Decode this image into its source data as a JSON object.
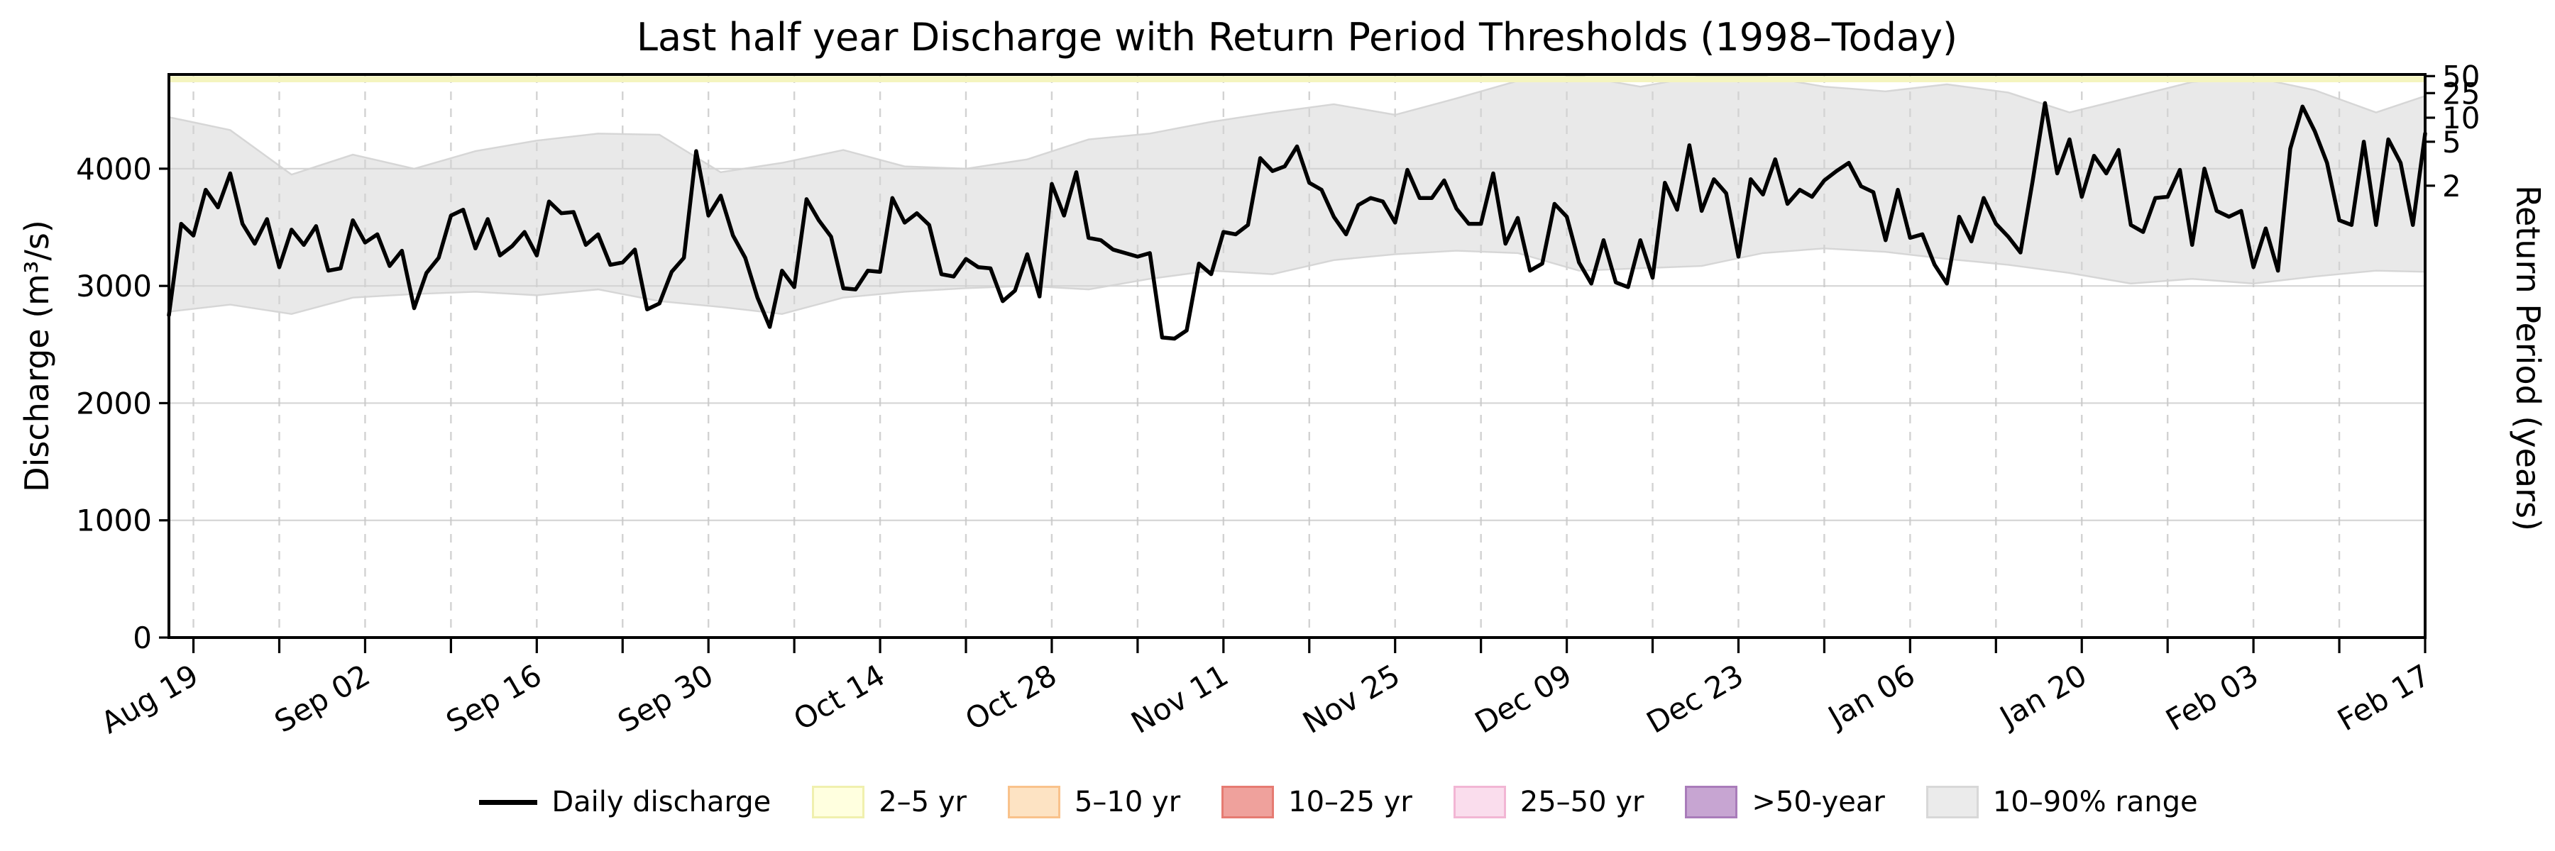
{
  "title": "Last half year Discharge with Return Period Thresholds (1998–Today)",
  "axes": {
    "left_label": "Discharge (m³/s)",
    "right_label": "Return Period (years)",
    "left_ticks": [
      0,
      1000,
      2000,
      3000,
      4000
    ],
    "right_ticks": [
      {
        "label": "50",
        "discharge": 4790
      },
      {
        "label": "25",
        "discharge": 4645
      },
      {
        "label": "10",
        "discharge": 4435
      },
      {
        "label": "5",
        "discharge": 4230
      },
      {
        "label": "2",
        "discharge": 3855
      }
    ],
    "x_tick_labels": [
      "Aug 19",
      "Sep 02",
      "Sep 16",
      "Sep 30",
      "Oct 14",
      "Oct 28",
      "Nov 11",
      "Nov 25",
      "Dec 09",
      "Dec 23",
      "Jan 06",
      "Jan 20",
      "Feb 03",
      "Feb 17"
    ]
  },
  "legend": [
    {
      "name": "daily-discharge",
      "label": "Daily discharge",
      "swatch": "line",
      "color": "#000000"
    },
    {
      "name": "band-2-5yr",
      "label": "2–5 yr",
      "swatch": "patch",
      "fill": "#ffffdf",
      "border": "#f0f0ae"
    },
    {
      "name": "band-5-10yr",
      "label": "5–10 yr",
      "swatch": "patch",
      "fill": "#fde3c3",
      "border": "#f9c28b"
    },
    {
      "name": "band-10-25yr",
      "label": "10–25 yr",
      "swatch": "patch",
      "fill": "#efa19c",
      "border": "#e67b72"
    },
    {
      "name": "band-25-50yr",
      "label": "25–50 yr",
      "swatch": "patch",
      "fill": "#fadded",
      "border": "#f2b6d4"
    },
    {
      "name": "band-gt-50yr",
      "label": ">50-year",
      "swatch": "patch",
      "fill": "#c7a5d2",
      "border": "#a97cba"
    },
    {
      "name": "band-10-90pct",
      "label": "10–90% range",
      "swatch": "patch",
      "fill": "#ebebeb",
      "border": "#d8d8d8"
    }
  ],
  "colors": {
    "line": "#000000",
    "frame": "#000000",
    "grid": "#c8c8c8",
    "band_fill": "#d3d3d3",
    "band_fill_opacity": 0.5,
    "band_edge": "#d3d3d3",
    "top_strip": "#f4f4bf"
  },
  "chart_data": {
    "type": "line",
    "title": "Last half year Discharge with Return Period Thresholds (1998–Today)",
    "xlabel": "",
    "ylabel": "Discharge (m³/s)",
    "y2label": "Return Period (years)",
    "x_start_date": "Aug 17",
    "x_end_date": "Feb 17",
    "days_total": 185,
    "x_first_tick_day": 2,
    "x_tick_interval_days": 7,
    "x_label_interval_days": 14,
    "x_tick_labels": [
      "Aug 19",
      "Sep 02",
      "Sep 16",
      "Sep 30",
      "Oct 14",
      "Oct 28",
      "Nov 11",
      "Nov 25",
      "Dec 09",
      "Dec 23",
      "Jan 06",
      "Jan 20",
      "Feb 03",
      "Feb 17"
    ],
    "ylim": [
      0,
      4804
    ],
    "grid": {
      "horizontal": "solid",
      "vertical": "dashed"
    },
    "legend_position": "bottom-center",
    "return_period_thresholds_m3s": {
      "2": 3855,
      "5": 4230,
      "10": 4435,
      "25": 4645,
      "50": 4790
    },
    "series": [
      {
        "name": "Daily discharge",
        "unit": "m³/s",
        "values": [
          2750,
          3530,
          3430,
          3820,
          3670,
          3960,
          3530,
          3360,
          3570,
          3160,
          3480,
          3350,
          3510,
          3130,
          3150,
          3560,
          3370,
          3440,
          3170,
          3300,
          2810,
          3110,
          3240,
          3600,
          3650,
          3320,
          3570,
          3260,
          3340,
          3460,
          3260,
          3720,
          3620,
          3630,
          3350,
          3440,
          3180,
          3200,
          3310,
          2800,
          2850,
          3120,
          3240,
          4150,
          3600,
          3770,
          3430,
          3240,
          2900,
          2650,
          3130,
          2990,
          3740,
          3560,
          3420,
          2980,
          2970,
          3130,
          3120,
          3750,
          3540,
          3620,
          3520,
          3100,
          3080,
          3230,
          3160,
          3150,
          2870,
          2960,
          3270,
          2910,
          3870,
          3600,
          3970,
          3410,
          3390,
          3310,
          3280,
          3250,
          3280,
          2560,
          2550,
          2620,
          3190,
          3100,
          3460,
          3440,
          3520,
          4090,
          3980,
          4020,
          4190,
          3880,
          3820,
          3590,
          3440,
          3690,
          3750,
          3720,
          3540,
          3990,
          3750,
          3750,
          3900,
          3660,
          3530,
          3530,
          3960,
          3360,
          3580,
          3130,
          3190,
          3700,
          3590,
          3200,
          3020,
          3390,
          3030,
          2990,
          3390,
          3070,
          3880,
          3650,
          4200,
          3640,
          3910,
          3790,
          3250,
          3910,
          3780,
          4080,
          3700,
          3820,
          3760,
          3900,
          3980,
          4050,
          3850,
          3800,
          3390,
          3820,
          3410,
          3440,
          3180,
          3020,
          3590,
          3380,
          3750,
          3530,
          3420,
          3285,
          3900,
          4560,
          3960,
          4250,
          3760,
          4110,
          3960,
          4160,
          3520,
          3460,
          3750,
          3760,
          3990,
          3350,
          4000,
          3640,
          3590,
          3640,
          3160,
          3490,
          3130,
          4170,
          4530,
          4320,
          4050,
          3560,
          3520,
          4230,
          3520,
          4250,
          4050,
          3520,
          4300
        ]
      },
      {
        "name": "10–90% range upper (p90)",
        "unit": "m³/s",
        "x_days": [
          0,
          5,
          10,
          15,
          20,
          25,
          30,
          35,
          40,
          45,
          50,
          55,
          60,
          65,
          70,
          75,
          80,
          85,
          90,
          95,
          100,
          105,
          110,
          115,
          120,
          125,
          130,
          135,
          140,
          145,
          150,
          155,
          160,
          165,
          170,
          175,
          180,
          184
        ],
        "values": [
          4440,
          4330,
          3950,
          4120,
          4000,
          4150,
          4240,
          4300,
          4290,
          3970,
          4050,
          4160,
          4020,
          4000,
          4080,
          4250,
          4300,
          4400,
          4480,
          4550,
          4460,
          4600,
          4750,
          4800,
          4700,
          4800,
          4790,
          4700,
          4660,
          4720,
          4650,
          4480,
          4610,
          4740,
          4780,
          4670,
          4480,
          4620
        ]
      },
      {
        "name": "10–90% range lower (p10)",
        "unit": "m³/s",
        "x_days": [
          0,
          5,
          10,
          15,
          20,
          25,
          30,
          35,
          40,
          45,
          50,
          55,
          60,
          65,
          70,
          75,
          80,
          85,
          90,
          95,
          100,
          105,
          110,
          115,
          120,
          125,
          130,
          135,
          140,
          145,
          150,
          155,
          160,
          165,
          170,
          175,
          180,
          184
        ],
        "values": [
          2780,
          2840,
          2760,
          2900,
          2930,
          2950,
          2920,
          2970,
          2870,
          2820,
          2760,
          2900,
          2950,
          2980,
          3000,
          2970,
          3060,
          3130,
          3100,
          3220,
          3270,
          3300,
          3280,
          3130,
          3150,
          3170,
          3280,
          3320,
          3290,
          3230,
          3180,
          3110,
          3020,
          3060,
          3020,
          3080,
          3130,
          3120
        ]
      }
    ]
  }
}
